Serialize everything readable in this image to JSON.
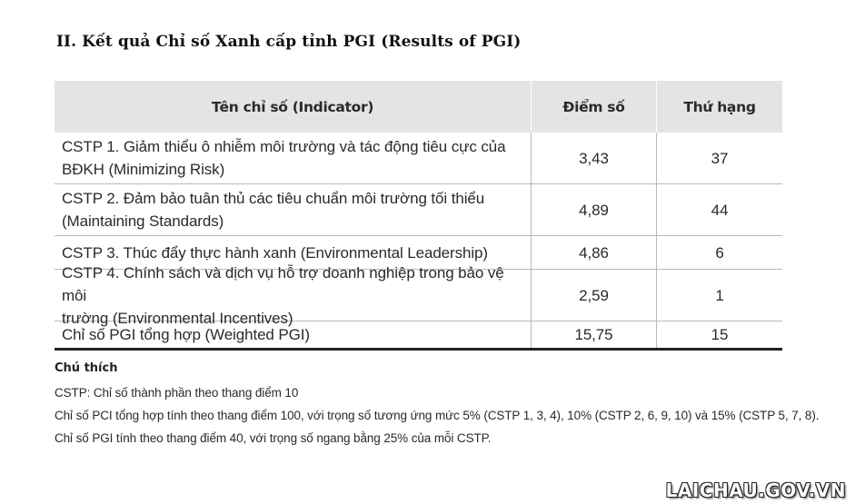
{
  "title": "II. Kết quả Chỉ số Xanh cấp tỉnh PGI (Results of PGI)",
  "table": {
    "headers": {
      "indicator": "Tên chỉ số (Indicator)",
      "score": "Điểm số",
      "rank": "Thứ hạng"
    },
    "rows": [
      {
        "indicator_line1": "CSTP 1. Giảm thiểu ô nhiễm môi trường và tác động tiêu cực của",
        "indicator_line2": "BĐKH (Minimizing Risk)",
        "score": "3,43",
        "rank": "37"
      },
      {
        "indicator_line1": "CSTP 2. Đảm bảo tuân thủ các tiêu chuẩn môi trường tối thiểu",
        "indicator_line2": "(Maintaining Standards)",
        "score": "4,89",
        "rank": "44"
      },
      {
        "indicator_line1": "CSTP 3. Thúc đẩy thực hành xanh (Environmental Leadership)",
        "indicator_line2": "",
        "score": "4,86",
        "rank": "6"
      },
      {
        "indicator_line1": "CSTP 4. Chính sách và dịch vụ hỗ trợ doanh nghiệp trong bảo vệ môi",
        "indicator_line2": "trường (Environmental Incentives)",
        "score": "2,59",
        "rank": "1"
      },
      {
        "indicator_line1": "Chỉ số PGI tổng hợp (Weighted PGI)",
        "indicator_line2": "",
        "score": "15,75",
        "rank": "15"
      }
    ]
  },
  "notes": {
    "heading": "Chú thích",
    "lines": [
      "CSTP: Chỉ số thành phần theo thang điểm 10",
      "Chỉ số PCI tổng hợp tính theo thang điểm 100, với trọng số tương ứng mức 5% (CSTP 1, 3, 4), 10% (CSTP 2, 6, 9, 10) và 15% (CSTP 5, 7, 8).",
      "Chỉ số PGI tính theo thang điểm 40, với trọng số ngang bằng 25% của mỗi CSTP."
    ]
  },
  "watermark": "LAICHAU.GOV.VN",
  "colors": {
    "header_bg": "#e3e4e6",
    "border": "#b9b9b9",
    "text": "#2a2a2a"
  }
}
